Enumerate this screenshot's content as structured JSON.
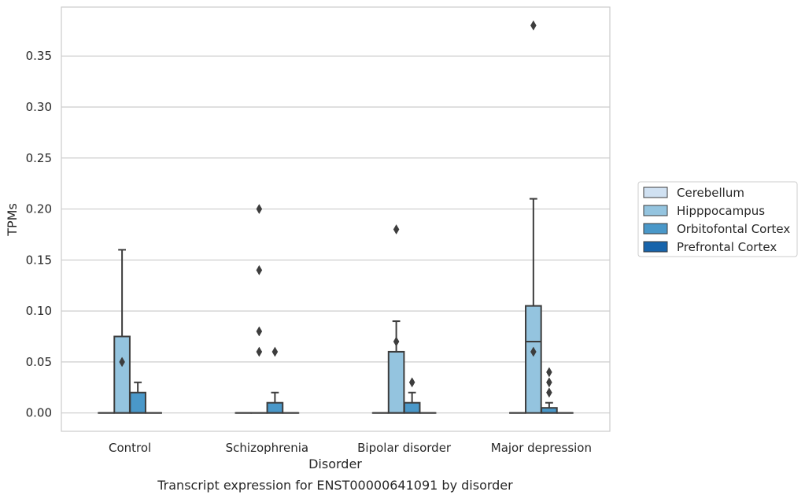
{
  "chart_data": {
    "type": "box",
    "xlabel": "Disorder",
    "ylabel": "TPMs",
    "caption": "Transcript expression for ENST00000641091 by disorder",
    "categories": [
      "Control",
      "Schizophrenia",
      "Bipolar disorder",
      "Major depression"
    ],
    "ylim": [
      -0.018,
      0.398
    ],
    "yticks": [
      0.0,
      0.05,
      0.1,
      0.15,
      0.2,
      0.25,
      0.3,
      0.35
    ],
    "ytick_labels": [
      "0.00",
      "0.05",
      "0.10",
      "0.15",
      "0.20",
      "0.25",
      "0.30",
      "0.35"
    ],
    "grid": "horizontal",
    "legend_position": "right",
    "series": [
      {
        "name": "Cerebellum",
        "color": "#d0e1f2",
        "boxes": [
          {
            "q1": 0,
            "median": 0,
            "q3": 0,
            "whislo": 0,
            "whishi": 0,
            "fliers": []
          },
          {
            "q1": 0,
            "median": 0,
            "q3": 0,
            "whislo": 0,
            "whishi": 0,
            "fliers": []
          },
          {
            "q1": 0,
            "median": 0,
            "q3": 0,
            "whislo": 0,
            "whishi": 0,
            "fliers": []
          },
          {
            "q1": 0,
            "median": 0,
            "q3": 0,
            "whislo": 0,
            "whishi": 0,
            "fliers": []
          }
        ]
      },
      {
        "name": "Hipppocampus",
        "color": "#94c4df",
        "boxes": [
          {
            "q1": 0,
            "median": 0,
            "q3": 0.075,
            "whislo": 0,
            "whishi": 0.16,
            "fliers": [
              0.05
            ]
          },
          {
            "q1": 0,
            "median": 0,
            "q3": 0,
            "whislo": 0,
            "whishi": 0,
            "fliers": [
              0.06,
              0.08,
              0.14,
              0.2
            ]
          },
          {
            "q1": 0,
            "median": 0,
            "q3": 0.06,
            "whislo": 0,
            "whishi": 0.09,
            "fliers": [
              0.07,
              0.18
            ]
          },
          {
            "q1": 0,
            "median": 0.07,
            "q3": 0.105,
            "whislo": 0,
            "whishi": 0.21,
            "fliers": [
              0.06,
              0.38
            ]
          }
        ]
      },
      {
        "name": "Orbitofontal Cortex",
        "color": "#4a98c9",
        "boxes": [
          {
            "q1": 0,
            "median": 0,
            "q3": 0.02,
            "whislo": 0,
            "whishi": 0.03,
            "fliers": []
          },
          {
            "q1": 0,
            "median": 0,
            "q3": 0.01,
            "whislo": 0,
            "whishi": 0.02,
            "fliers": [
              0.06
            ]
          },
          {
            "q1": 0,
            "median": 0,
            "q3": 0.01,
            "whislo": 0,
            "whishi": 0.02,
            "fliers": [
              0.03
            ]
          },
          {
            "q1": 0,
            "median": 0,
            "q3": 0.005,
            "whislo": 0,
            "whishi": 0.01,
            "fliers": [
              0.02,
              0.03,
              0.04
            ]
          }
        ]
      },
      {
        "name": "Prefrontal Cortex",
        "color": "#1764ab",
        "boxes": [
          {
            "q1": 0,
            "median": 0,
            "q3": 0,
            "whislo": 0,
            "whishi": 0,
            "fliers": []
          },
          {
            "q1": 0,
            "median": 0,
            "q3": 0,
            "whislo": 0,
            "whishi": 0,
            "fliers": []
          },
          {
            "q1": 0,
            "median": 0,
            "q3": 0,
            "whislo": 0,
            "whishi": 0,
            "fliers": []
          },
          {
            "q1": 0,
            "median": 0,
            "q3": 0,
            "whislo": 0,
            "whishi": 0,
            "fliers": []
          }
        ]
      }
    ]
  }
}
